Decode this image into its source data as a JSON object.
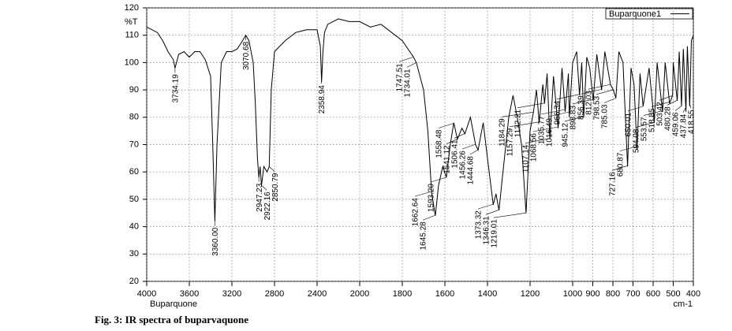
{
  "chart_data": {
    "type": "line",
    "y_label": "%T",
    "x_label": "Buparquone",
    "x_unit": "cm-1",
    "caption": "Fig. 3: IR spectra of buparvaquone",
    "ylim": [
      20,
      120
    ],
    "yticks": [
      20,
      30,
      40,
      50,
      60,
      70,
      80,
      90,
      100,
      110,
      120
    ],
    "xlim": [
      4000,
      400
    ],
    "xticks": [
      4000,
      3600,
      3200,
      2800,
      2400,
      2000,
      1800,
      1600,
      1400,
      1200,
      1000,
      900,
      800,
      700,
      600,
      500,
      400
    ],
    "grid": true,
    "legend": "top-right",
    "x": [
      4000,
      3900,
      3850,
      3800,
      3750,
      3734,
      3700,
      3650,
      3600,
      3550,
      3500,
      3450,
      3400,
      3380,
      3360,
      3340,
      3300,
      3250,
      3200,
      3150,
      3100,
      3070,
      3040,
      3000,
      2980,
      2960,
      2947,
      2935,
      2922,
      2900,
      2870,
      2850,
      2830,
      2800,
      2700,
      2600,
      2500,
      2400,
      2370,
      2358,
      2345,
      2330,
      2300,
      2200,
      2100,
      2000,
      1950,
      1900,
      1850,
      1800,
      1747,
      1734,
      1700,
      1680,
      1662,
      1645,
      1630,
      1610,
      1593,
      1575,
      1558,
      1541,
      1520,
      1506,
      1480,
      1456,
      1444,
      1420,
      1400,
      1373,
      1360,
      1346,
      1330,
      1300,
      1280,
      1260,
      1240,
      1219,
      1200,
      1184,
      1170,
      1157,
      1140,
      1132,
      1120,
      1107,
      1090,
      1068,
      1050,
      1035,
      1020,
      1016,
      1000,
      980,
      966,
      955,
      945,
      930,
      915,
      898,
      880,
      856,
      840,
      812,
      798,
      785,
      770,
      750,
      727,
      710,
      695,
      680,
      665,
      650,
      620,
      594,
      580,
      553,
      540,
      518,
      503,
      500,
      480,
      470,
      459,
      450,
      437,
      430,
      418,
      410,
      400
    ],
    "series": [
      {
        "name": "Buparquone1",
        "color": "#000000",
        "values": [
          113,
          111,
          108,
          104,
          101,
          98,
          103,
          104,
          102,
          104,
          104,
          101,
          95,
          70,
          42,
          70,
          100,
          104,
          104,
          105,
          108,
          110,
          108,
          100,
          85,
          65,
          58,
          62,
          55,
          62,
          60,
          62,
          90,
          104,
          108,
          111,
          112,
          112,
          106,
          93,
          104,
          111,
          114,
          116,
          115,
          115,
          113,
          114,
          111,
          108,
          102,
          100,
          90,
          75,
          52,
          44,
          55,
          62,
          58,
          70,
          78,
          72,
          76,
          74,
          80,
          70,
          68,
          78,
          65,
          48,
          52,
          46,
          58,
          80,
          88,
          80,
          70,
          45,
          75,
          82,
          90,
          78,
          92,
          85,
          96,
          72,
          95,
          76,
          98,
          82,
          96,
          80,
          100,
          104,
          88,
          100,
          80,
          102,
          98,
          86,
          103,
          90,
          104,
          92,
          90,
          87,
          104,
          100,
          62,
          98,
          92,
          68,
          96,
          84,
          98,
          78,
          100,
          82,
          100,
          85,
          88,
          100,
          86,
          104,
          84,
          105,
          82,
          106,
          84,
          108,
          110
        ]
      }
    ],
    "annotations": [
      "3734.19",
      "3360.00",
      "3070.68",
      "2947.23",
      "2922.16",
      "2850.79",
      "2358.94",
      "1747.51",
      "1734.01",
      "1662.64",
      "1645.28",
      "1593.20",
      "1558.48",
      "1541.12",
      "1506.41",
      "1456.26",
      "1444.68",
      "1373.32",
      "1346.31",
      "1219.01",
      "1184.29",
      "1157.29",
      "1132.21",
      "1107.14",
      "1068.56",
      "1035.77",
      "1016.49",
      "966.34",
      "945.12",
      "898.83",
      "856.39",
      "812.03",
      "798.53",
      "785.03",
      "727.16",
      "680.87",
      "650.01",
      "594.08",
      "553.57",
      "518.85",
      "503.42",
      "480.28",
      "459.06",
      "437.84",
      "418.55"
    ]
  }
}
